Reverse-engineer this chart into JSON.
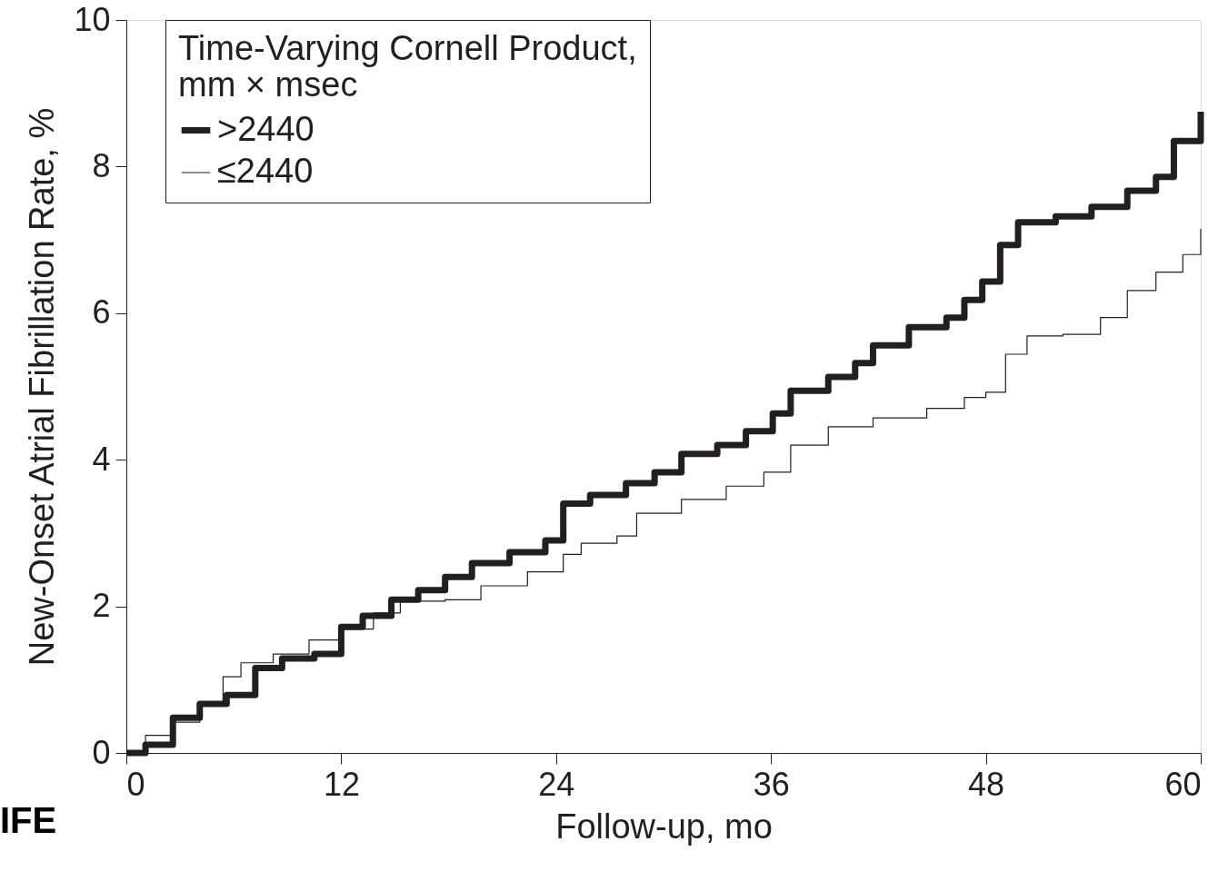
{
  "chart_data": {
    "type": "step",
    "xlabel": "Follow-up, mo",
    "ylabel": "New-Onset Atrial Fibrillation Rate, %",
    "legend_title": "Time-Varying Cornell Product,\n  mm × msec",
    "legend": "top left",
    "grid": false,
    "marker": "none",
    "line_style": "solid",
    "xlim": [
      0,
      60
    ],
    "xticks": [
      0,
      12,
      24,
      36,
      48,
      60
    ],
    "ylim": [
      0,
      10
    ],
    "yticks": [
      0,
      2,
      4,
      6,
      8,
      10
    ],
    "annotations": [
      "IFE"
    ],
    "series": [
      {
        "name": ">2440",
        "color": "#231f20",
        "x": [
          0,
          1.07,
          2.6,
          4.1,
          5.6,
          7.2,
          8.7,
          10.5,
          12,
          13.2,
          14.8,
          16.3,
          17.8,
          19.3,
          21.4,
          23.4,
          24.4,
          25.9,
          27.9,
          29.5,
          31,
          33,
          34.6,
          36.1,
          37.1,
          39.2,
          40.7,
          41.7,
          43.7,
          45.8,
          46.8,
          47.8,
          48.8,
          49.8,
          51.9,
          53.9,
          55.9,
          57.5,
          58.5,
          60
        ],
        "values": [
          0,
          0.11,
          0.48,
          0.67,
          0.79,
          1.16,
          1.29,
          1.35,
          1.72,
          1.87,
          2.09,
          2.22,
          2.4,
          2.59,
          2.74,
          2.9,
          3.4,
          3.52,
          3.68,
          3.83,
          4.08,
          4.2,
          4.39,
          4.63,
          4.94,
          5.13,
          5.32,
          5.56,
          5.81,
          5.94,
          6.18,
          6.43,
          6.93,
          7.24,
          7.32,
          7.45,
          7.67,
          7.86,
          8.35,
          8.75
        ]
      },
      {
        "name": "≤2440",
        "color": "#231f20",
        "x": [
          0,
          1.07,
          2.6,
          4.1,
          5.4,
          6.4,
          8.2,
          10.2,
          12,
          13.8,
          15.3,
          17.8,
          19.8,
          22.4,
          24.4,
          25.4,
          27.4,
          28.5,
          31,
          33.5,
          35.6,
          37.1,
          39.2,
          41.7,
          44.7,
          46.8,
          48,
          49.1,
          50.3,
          52.3,
          54.4,
          55.9,
          57.5,
          59,
          60
        ],
        "values": [
          0,
          0.24,
          0.42,
          0.67,
          1.04,
          1.23,
          1.35,
          1.54,
          1.69,
          1.91,
          2.07,
          2.09,
          2.28,
          2.47,
          2.71,
          2.86,
          2.96,
          3.27,
          3.46,
          3.64,
          3.83,
          4.2,
          4.45,
          4.57,
          4.7,
          4.85,
          4.92,
          5.44,
          5.69,
          5.71,
          5.94,
          6.31,
          6.56,
          6.8,
          7.15
        ]
      }
    ]
  }
}
